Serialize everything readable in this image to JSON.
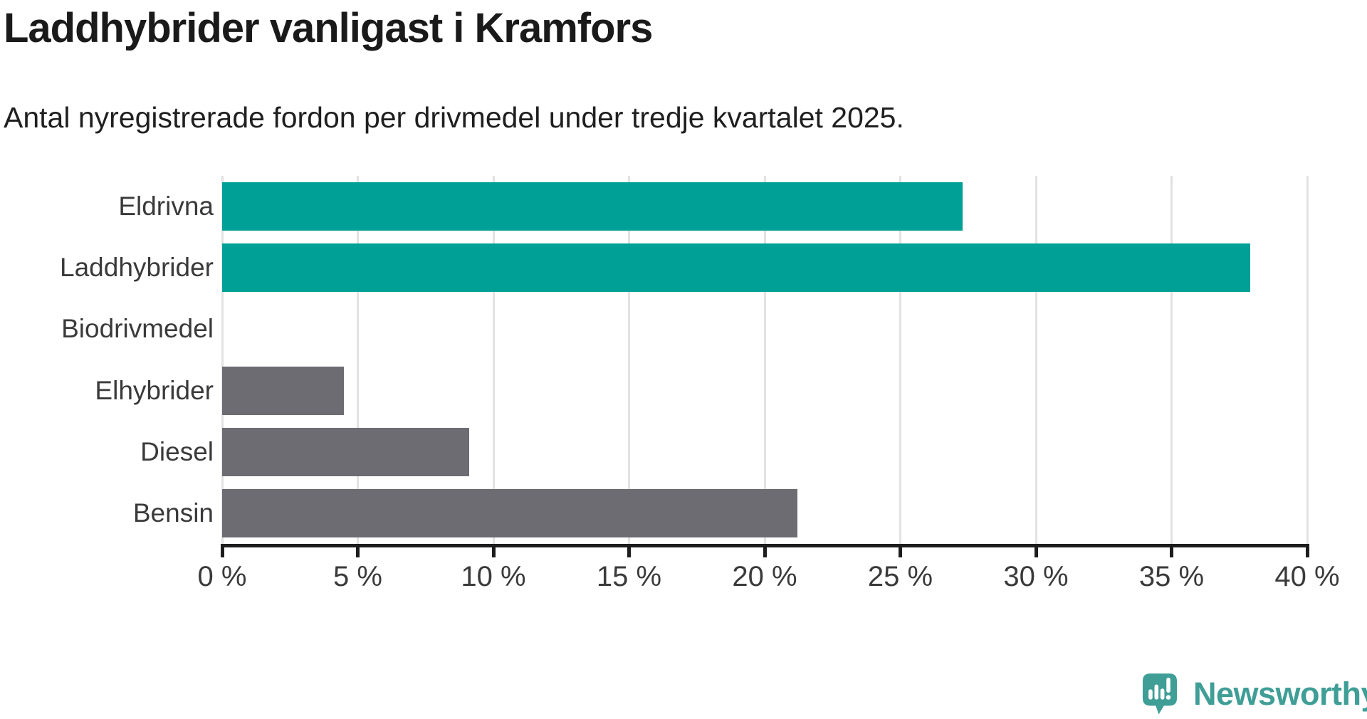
{
  "header": {
    "title": "Laddhybrider vanligast i Kramfors",
    "subtitle": "Antal nyregistrerade fordon per drivmedel under tredje kvartalet 2025."
  },
  "chart_data": {
    "type": "bar",
    "orientation": "horizontal",
    "title": "Laddhybrider vanligast i Kramfors",
    "subtitle": "Antal nyregistrerade fordon per drivmedel under tredje kvartalet 2025.",
    "categories": [
      "Eldrivna",
      "Laddhybrider",
      "Biodrivmedel",
      "Elhybrider",
      "Diesel",
      "Bensin"
    ],
    "values": [
      27.3,
      37.9,
      0,
      4.5,
      9.1,
      21.2
    ],
    "unit": "%",
    "xlabel": "",
    "ylabel": "",
    "xlim": [
      0,
      40
    ],
    "x_ticks": [
      0,
      5,
      10,
      15,
      20,
      25,
      30,
      35,
      40
    ],
    "x_tick_labels": [
      "0 %",
      "5 %",
      "10 %",
      "15 %",
      "20 %",
      "25 %",
      "30 %",
      "35 %",
      "40 %"
    ],
    "grid": true,
    "legend": "none",
    "bar_colors": [
      "#00a096",
      "#00a096",
      "#6c6c72",
      "#6c6c72",
      "#6c6c72",
      "#6c6c72"
    ]
  },
  "colors": {
    "highlight_teal": "#00a096",
    "neutral_gray": "#6c6c72",
    "gridline": "#e2e2e2",
    "axis": "#1d1d1d",
    "label_text": "#3a3a3a",
    "title_text": "#1a1a1a",
    "brand_teal": "#3f9e96"
  },
  "branding": {
    "name": "Newsworthy",
    "icon": "newsworthy-speech-bubble-chart-icon"
  }
}
